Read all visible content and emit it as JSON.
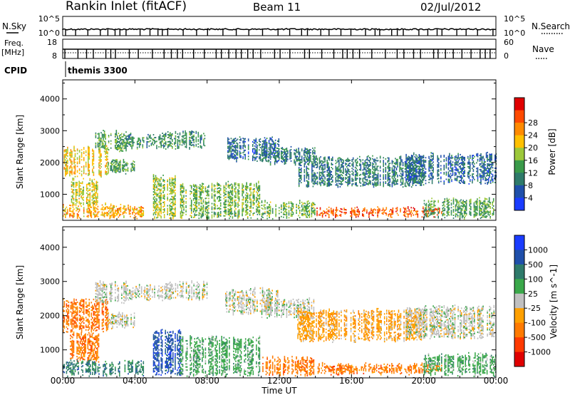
{
  "header": {
    "station": "Rankin Inlet (fitACF)",
    "beam": "Beam 11",
    "date": "02/Jul/2012"
  },
  "status_panels": {
    "nsky_label": "N.Sky",
    "nsearch_label": "N.Search",
    "nsky_ticks": [
      "10^5",
      "10^0"
    ],
    "nsearch_ticks": [
      "10^5",
      "10^0"
    ],
    "freq_label_1": "Freq.",
    "freq_label_2": "[MHz]",
    "freq_ticks": [
      "18",
      "8"
    ],
    "nave_label": "Nave",
    "nave_ticks": [
      "60",
      "0"
    ],
    "cpid_label": "CPID",
    "cpid_value": "themis 3300"
  },
  "x_axis": {
    "label": "Time UT",
    "tick_labels": [
      "00:00",
      "04:00",
      "08:00",
      "12:00",
      "16:00",
      "20:00",
      "00:00"
    ],
    "tick_hours": [
      0,
      4,
      8,
      12,
      16,
      20,
      24
    ],
    "range_hours": [
      0,
      24
    ]
  },
  "chart_data": [
    {
      "type": "heatmap",
      "name": "power",
      "ylabel": "Slant Range [km]",
      "ylim": [
        180,
        4600
      ],
      "y_ticks": [
        1000,
        2000,
        3000,
        4000
      ],
      "colorbar_label": "Power [dB]",
      "colorbar_ticks": [
        4,
        8,
        12,
        16,
        20,
        24,
        28
      ],
      "colorbar_range": [
        0,
        32
      ],
      "colors": [
        "#1a3cff",
        "#1f4faa",
        "#2e7a6a",
        "#3a9a4a",
        "#9cc83a",
        "#ffc000",
        "#ff8a00",
        "#ff4a00",
        "#e00000"
      ],
      "regions": [
        {
          "t": [
            0.0,
            2.5
          ],
          "r": [
            1500,
            2500
          ],
          "level": 20
        },
        {
          "t": [
            0.4,
            2.0
          ],
          "r": [
            600,
            1500
          ],
          "level": 18
        },
        {
          "t": [
            1.8,
            3.5
          ],
          "r": [
            2300,
            3000
          ],
          "level": 12
        },
        {
          "t": [
            2.5,
            4.0
          ],
          "r": [
            1600,
            2100
          ],
          "level": 12
        },
        {
          "t": [
            3.5,
            5.5
          ],
          "r": [
            2400,
            2900
          ],
          "level": 10
        },
        {
          "t": [
            5.5,
            8.0
          ],
          "r": [
            2400,
            3000
          ],
          "level": 10
        },
        {
          "t": [
            0.0,
            4.5
          ],
          "r": [
            200,
            700
          ],
          "level": 22
        },
        {
          "t": [
            5.0,
            6.5
          ],
          "r": [
            200,
            1600
          ],
          "level": 16
        },
        {
          "t": [
            6.5,
            11.0
          ],
          "r": [
            200,
            1400
          ],
          "level": 14
        },
        {
          "t": [
            9.0,
            12.0
          ],
          "r": [
            2000,
            2800
          ],
          "level": 6
        },
        {
          "t": [
            11.0,
            14.0
          ],
          "r": [
            1900,
            2500
          ],
          "level": 8
        },
        {
          "t": [
            13.0,
            20.0
          ],
          "r": [
            1200,
            2200
          ],
          "level": 8
        },
        {
          "t": [
            14.0,
            21.0
          ],
          "r": [
            250,
            600
          ],
          "level": 27
        },
        {
          "t": [
            11.0,
            14.0
          ],
          "r": [
            200,
            800
          ],
          "level": 14
        },
        {
          "t": [
            19.0,
            24.0
          ],
          "r": [
            1300,
            2300
          ],
          "level": 6
        },
        {
          "t": [
            20.0,
            24.0
          ],
          "r": [
            200,
            900
          ],
          "level": 12
        }
      ]
    },
    {
      "type": "heatmap",
      "name": "velocity",
      "ylabel": "Slant Range [km]",
      "ylim": [
        180,
        4600
      ],
      "y_ticks": [
        1000,
        2000,
        3000,
        4000
      ],
      "colorbar_label": "Velocity [m s^-1]",
      "colorbar_ticks": [
        "1000",
        "500",
        "100",
        "25",
        "-25",
        "-100",
        "-500",
        "-1000"
      ],
      "colors": [
        "#1a3cff",
        "#1f4faa",
        "#2e7a6a",
        "#3aa84a",
        "#c0c0c0",
        "#ffa000",
        "#ff7a00",
        "#ff3a00",
        "#e00000"
      ],
      "regions": [
        {
          "t": [
            0.0,
            2.5
          ],
          "r": [
            1500,
            2500
          ],
          "level": 6
        },
        {
          "t": [
            0.4,
            2.0
          ],
          "r": [
            600,
            1500
          ],
          "level": 6
        },
        {
          "t": [
            1.8,
            3.5
          ],
          "r": [
            2300,
            3000
          ],
          "level": 4
        },
        {
          "t": [
            2.5,
            4.0
          ],
          "r": [
            1600,
            2100
          ],
          "level": 4
        },
        {
          "t": [
            3.5,
            5.5
          ],
          "r": [
            2400,
            2900
          ],
          "level": 4
        },
        {
          "t": [
            5.5,
            8.0
          ],
          "r": [
            2400,
            3000
          ],
          "level": 4
        },
        {
          "t": [
            0.0,
            4.5
          ],
          "r": [
            200,
            700
          ],
          "level": 2
        },
        {
          "t": [
            5.0,
            6.5
          ],
          "r": [
            200,
            1600
          ],
          "level": 1
        },
        {
          "t": [
            6.5,
            11.0
          ],
          "r": [
            200,
            1400
          ],
          "level": 3
        },
        {
          "t": [
            9.0,
            12.0
          ],
          "r": [
            2000,
            2800
          ],
          "level": 4
        },
        {
          "t": [
            11.0,
            14.0
          ],
          "r": [
            1900,
            2500
          ],
          "level": 4
        },
        {
          "t": [
            13.0,
            20.0
          ],
          "r": [
            1200,
            2200
          ],
          "level": 5
        },
        {
          "t": [
            14.0,
            21.0
          ],
          "r": [
            250,
            600
          ],
          "level": 6
        },
        {
          "t": [
            11.0,
            14.0
          ],
          "r": [
            200,
            800
          ],
          "level": 6
        },
        {
          "t": [
            19.0,
            24.0
          ],
          "r": [
            1300,
            2300
          ],
          "level": 4
        },
        {
          "t": [
            20.0,
            24.0
          ],
          "r": [
            200,
            900
          ],
          "level": 3
        }
      ]
    }
  ]
}
